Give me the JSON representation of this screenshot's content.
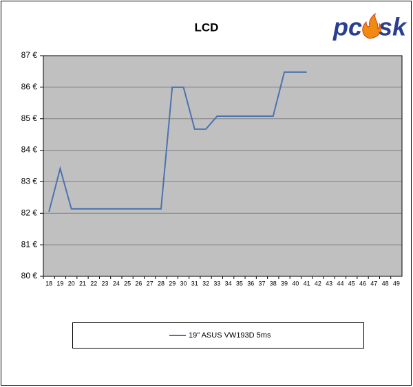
{
  "chart_data": {
    "type": "line",
    "title": "LCD",
    "logo": [
      "pc",
      "sk"
    ],
    "categories": [
      "18",
      "19",
      "20",
      "21",
      "22",
      "23",
      "24",
      "25",
      "26",
      "27",
      "28",
      "29",
      "30",
      "31",
      "32",
      "33",
      "34",
      "35",
      "36",
      "37",
      "38",
      "39",
      "40",
      "41",
      "42",
      "43",
      "44",
      "45",
      "46",
      "47",
      "48",
      "49"
    ],
    "series": [
      {
        "name": "19\" ASUS VW193D 5ms",
        "color": "#4a72b0",
        "values": [
          82.05,
          83.42,
          82.14,
          82.14,
          82.14,
          82.14,
          82.14,
          82.14,
          82.14,
          82.14,
          82.14,
          86.0,
          86.0,
          84.67,
          84.67,
          85.08,
          85.08,
          85.08,
          85.08,
          85.08,
          85.08,
          86.48,
          86.48,
          86.48,
          null,
          null,
          null,
          null,
          null,
          null,
          null,
          null
        ]
      }
    ],
    "ylim": [
      80,
      87
    ],
    "yticks": [
      {
        "value": 80,
        "label": "80 €"
      },
      {
        "value": 81,
        "label": "81 €"
      },
      {
        "value": 82,
        "label": "82 €"
      },
      {
        "value": 83,
        "label": "83 €"
      },
      {
        "value": 84,
        "label": "84 €"
      },
      {
        "value": 85,
        "label": "85 €"
      },
      {
        "value": 86,
        "label": "86 €"
      },
      {
        "value": 87,
        "label": "87 €"
      }
    ],
    "grid": true
  }
}
